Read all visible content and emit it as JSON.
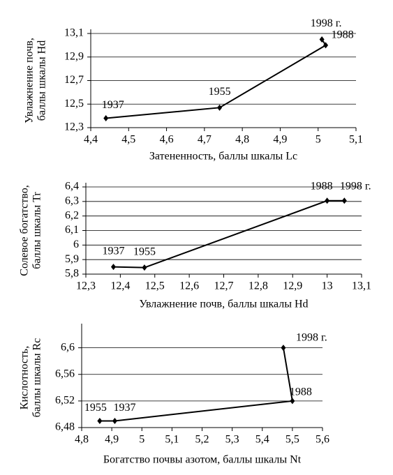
{
  "chart_data": [
    {
      "type": "line",
      "xlabel": "Затененность, баллы шкалы Lc",
      "ylabel": [
        "Увлажнение почв,",
        "баллы шкалы Hd"
      ],
      "x": [
        4.44,
        4.74,
        5.02,
        5.01
      ],
      "values": [
        12.38,
        12.47,
        13.0,
        13.05
      ],
      "point_labels": [
        "1937",
        "1955",
        "1988",
        "1998 г."
      ],
      "color": "#000000",
      "xlim": [
        4.4,
        5.1
      ],
      "xticks": [
        {
          "value": 4.4,
          "label": "4,4"
        },
        {
          "value": 4.5,
          "label": "4,5"
        },
        {
          "value": 4.6,
          "label": "4,6"
        },
        {
          "value": 4.7,
          "label": "4,7"
        },
        {
          "value": 4.8,
          "label": "4,8"
        },
        {
          "value": 4.9,
          "label": "4,9"
        },
        5,
        {
          "value": 5.1,
          "label": "5,1"
        }
      ],
      "ylim": [
        12.3,
        13.1
      ],
      "yticks": [
        {
          "value": 12.3,
          "label": "12,3"
        },
        {
          "value": 12.5,
          "label": "12,5"
        },
        {
          "value": 12.7,
          "label": "12,7"
        },
        {
          "value": 12.9,
          "label": "12,9"
        },
        {
          "value": 13.1,
          "label": "13,1"
        }
      ],
      "grid": true
    },
    {
      "type": "line",
      "xlabel": "Увлажнение почв, баллы шкалы Hd",
      "ylabel": [
        "Солевое богатство,",
        "баллы шкалы Tr"
      ],
      "x": [
        12.38,
        12.47,
        13.0,
        13.05
      ],
      "values": [
        5.85,
        5.845,
        6.305,
        6.305
      ],
      "point_labels": [
        "1937",
        "1955",
        "1988",
        "1998 г."
      ],
      "color": "#000000",
      "xlim": [
        12.3,
        13.1
      ],
      "xticks": [
        {
          "value": 12.3,
          "label": "12,3"
        },
        {
          "value": 12.4,
          "label": "12,4"
        },
        {
          "value": 12.5,
          "label": "12,5"
        },
        {
          "value": 12.6,
          "label": "12,6"
        },
        {
          "value": 12.7,
          "label": "12,7"
        },
        {
          "value": 12.8,
          "label": "12,8"
        },
        {
          "value": 12.9,
          "label": "12,9"
        },
        13,
        {
          "value": 13.1,
          "label": "13,1"
        }
      ],
      "ylim": [
        5.8,
        6.4
      ],
      "yticks": [
        {
          "value": 5.8,
          "label": "5,8"
        },
        {
          "value": 5.9,
          "label": "5,9"
        },
        6,
        {
          "value": 6.1,
          "label": "6,1"
        },
        {
          "value": 6.2,
          "label": "6,2"
        },
        {
          "value": 6.3,
          "label": "6,3"
        },
        {
          "value": 6.4,
          "label": "6,4"
        }
      ],
      "grid": true
    },
    {
      "type": "line",
      "xlabel": "Богатство почвы азотом, баллы шкалы Nt",
      "ylabel": [
        "Кислотность,",
        "баллы шкалы Rc"
      ],
      "x": [
        4.86,
        4.91,
        5.5,
        5.47
      ],
      "values": [
        6.49,
        6.49,
        6.52,
        6.6
      ],
      "point_labels": [
        "1955",
        "1937",
        "1988",
        "1998 г."
      ],
      "color": "#000000",
      "xlim": [
        4.8,
        5.6
      ],
      "xticks": [
        {
          "value": 4.8,
          "label": "4,8"
        },
        {
          "value": 4.9,
          "label": "4,9"
        },
        5,
        {
          "value": 5.1,
          "label": "5,1"
        },
        {
          "value": 5.2,
          "label": "5,2"
        },
        {
          "value": 5.3,
          "label": "5,3"
        },
        {
          "value": 5.4,
          "label": "5,4"
        },
        {
          "value": 5.5,
          "label": "5,5"
        },
        {
          "value": 5.6,
          "label": "5,6"
        }
      ],
      "ylim": [
        6.48,
        6.63
      ],
      "yticks": [
        {
          "value": 6.48,
          "label": "6,48"
        },
        {
          "value": 6.52,
          "label": "6,52"
        },
        {
          "value": 6.56,
          "label": "6,56"
        },
        {
          "value": 6.6,
          "label": "6,6"
        }
      ],
      "grid": true
    }
  ]
}
